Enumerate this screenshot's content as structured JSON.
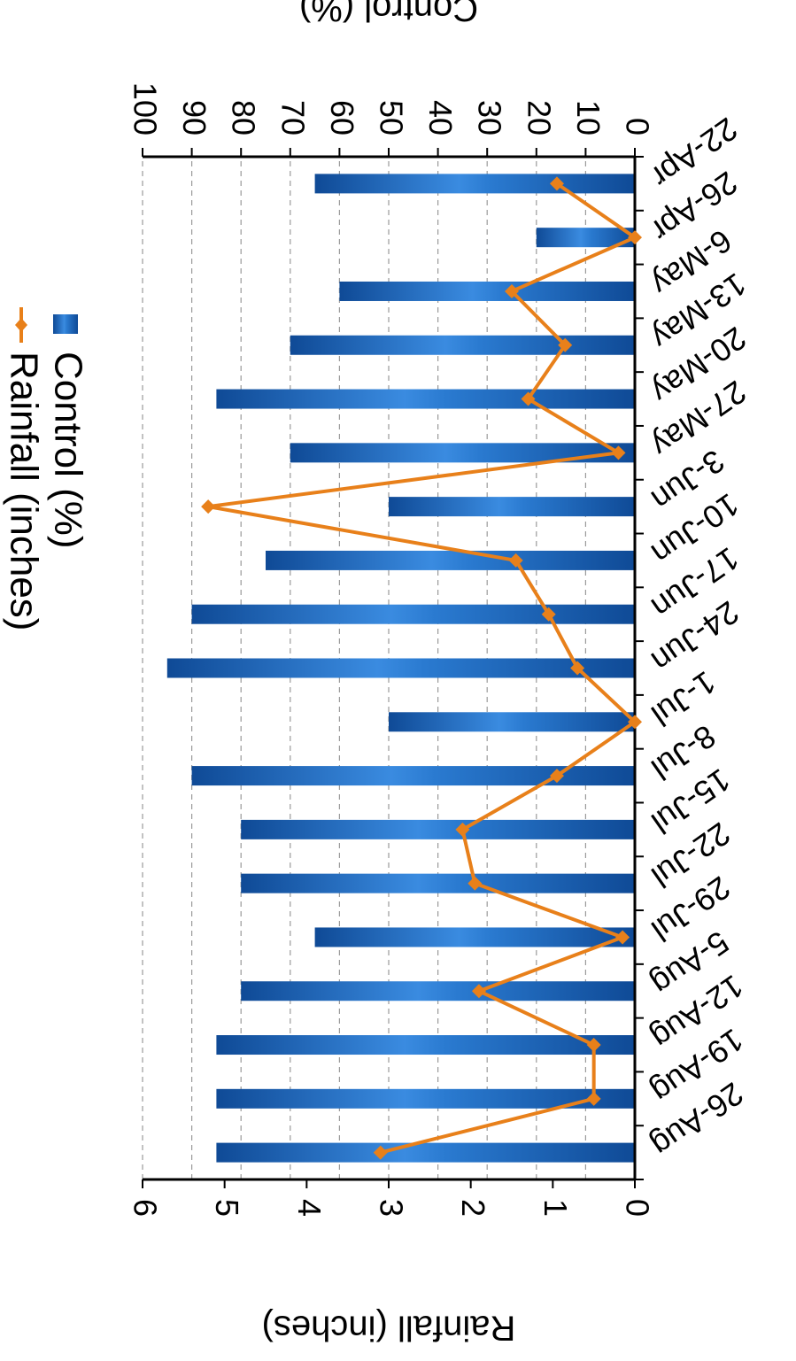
{
  "chart_data": {
    "type": "bar",
    "categories": [
      "22-Apr",
      "26-Apr",
      "6-May",
      "13-May",
      "20-May",
      "27-May",
      "3-Jun",
      "10-Jun",
      "17-Jun",
      "24-Jun",
      "1-Jul",
      "8-Jul",
      "15-Jul",
      "22-Jul",
      "29-Jul",
      "5-Aug",
      "12-Aug",
      "19-Aug",
      "26-Aug"
    ],
    "series": [
      {
        "name": "Control (%)",
        "type": "bar",
        "axis": "left",
        "color": "#1e5fb4",
        "values": [
          65,
          20,
          60,
          70,
          85,
          70,
          50,
          75,
          90,
          95,
          50,
          90,
          80,
          80,
          65,
          80,
          85,
          85,
          85
        ]
      },
      {
        "name": "Rainfall  (inches)",
        "type": "line",
        "axis": "right",
        "color": "#e8801a",
        "values": [
          0.95,
          0.0,
          1.5,
          0.85,
          1.3,
          0.2,
          5.2,
          1.45,
          1.05,
          0.7,
          0.0,
          0.95,
          2.1,
          1.95,
          0.15,
          1.9,
          0.5,
          0.5,
          3.1
        ]
      }
    ],
    "ylabel": "Control (%)",
    "ylim": [
      0,
      100
    ],
    "yticks": [
      "0",
      "10",
      "20",
      "30",
      "40",
      "50",
      "60",
      "70",
      "80",
      "90",
      "100"
    ],
    "y2label": "Rainfall (inches)",
    "y2lim": [
      0,
      6
    ],
    "y2ticks": [
      "0",
      "1",
      "2",
      "3",
      "4",
      "5",
      "6"
    ],
    "grid": "dashed horizontal at left-axis major ticks",
    "legend": "top-center",
    "orientation": "rotated 180 degrees (upside down)"
  }
}
